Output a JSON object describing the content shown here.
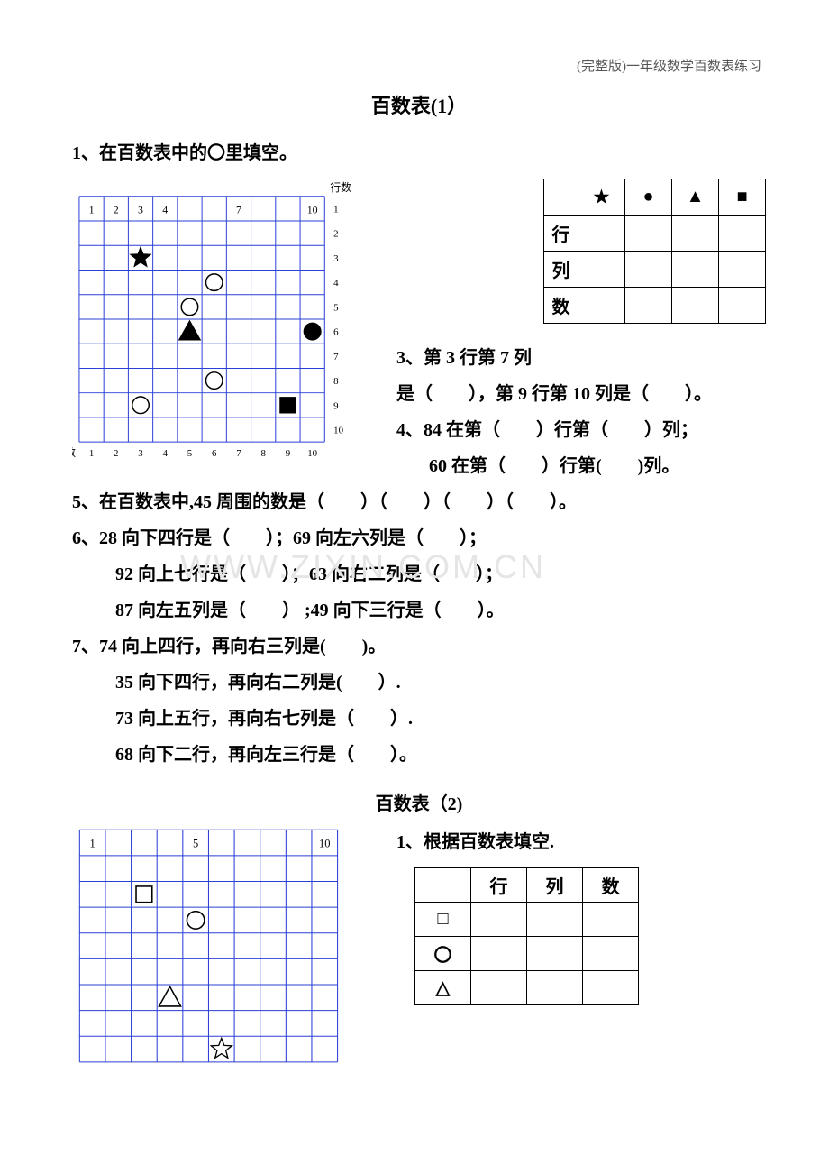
{
  "header_note": "(完整版)一年级数学百数表练习",
  "title1": "百数表(1）",
  "q1": "1、在百数表中的〇里填空。",
  "chart1": {
    "rowlabel": "行数",
    "collabel": "列数",
    "cell_size": 27.5,
    "grid_color": "#2a3fd6",
    "grid_width": 1,
    "numbers": {
      "1": "1",
      "2": "2",
      "3": "3",
      "4": "4",
      "7": "7",
      "10": "10"
    },
    "shapes": [
      {
        "type": "star_filled",
        "row": 3,
        "col": 3
      },
      {
        "type": "circle_open",
        "row": 4,
        "col": 6
      },
      {
        "type": "circle_open",
        "row": 5,
        "col": 5
      },
      {
        "type": "triangle_filled",
        "row": 6,
        "col": 5
      },
      {
        "type": "circle_filled",
        "row": 6,
        "col": 10
      },
      {
        "type": "circle_open",
        "row": 8,
        "col": 6
      },
      {
        "type": "circle_open",
        "row": 9,
        "col": 3
      },
      {
        "type": "square_filled",
        "row": 9,
        "col": 9
      }
    ],
    "axis_right": [
      "1",
      "2",
      "3",
      "4",
      "5",
      "6",
      "7",
      "8",
      "9",
      "10"
    ],
    "axis_bottom": [
      "1",
      "2",
      "3",
      "4",
      "5",
      "6",
      "7",
      "8",
      "9",
      "10"
    ]
  },
  "ans1": {
    "row_labels": [
      "行",
      "列",
      "数"
    ],
    "col_symbols": [
      "star",
      "circle",
      "triangle",
      "square"
    ]
  },
  "q3a": "3、第 3 行第 7 列",
  "q3b": "是（　　），第 9 行第 10 列是（　　）。",
  "q4a": "4、84 在第（　　）行第（　　）列；",
  "q4b": "60 在第（　　）行第(　　)列。",
  "q5": "5、在百数表中,45 周围的数是（　　）（　　）（　　）（　　）。",
  "q6a": "6、28 向下四行是（　　）；69 向左六列是（　　）；",
  "q6b": "92 向上七行是（　　）；63 向右二列是（　　）；",
  "q6c": "87 向左五列是（　　） ;49 向下三行是（　　）。",
  "q7a": "7、74 向上四行，再向右三列是(　　)。",
  "q7b": "35 向下四行，再向右二列是(　　）.",
  "q7c": "73 向上五行，再向右七列是（　　）.",
  "q7d": "68 向下二行，再向左三行是（　　）。",
  "title2": "百数表（2)",
  "q2_1": "1、根据百数表填空.",
  "chart2": {
    "cell_size": 27.5,
    "grid_color": "#2a3fd6",
    "grid_width": 1,
    "numbers": {
      "1": "1",
      "5": "5",
      "10": "10"
    },
    "shapes": [
      {
        "type": "square_open",
        "row": 3,
        "col": 3
      },
      {
        "type": "circle_open",
        "row": 4,
        "col": 5
      },
      {
        "type": "triangle_open",
        "row": 7,
        "col": 4
      },
      {
        "type": "star_open",
        "row": 9,
        "col": 6
      }
    ]
  },
  "ans2": {
    "col_labels": [
      "行",
      "列",
      "数"
    ],
    "row_symbols": [
      "square_open",
      "circle_open",
      "triangle_open"
    ]
  },
  "watermark": "WWW.ZIXIN.COM.CN"
}
